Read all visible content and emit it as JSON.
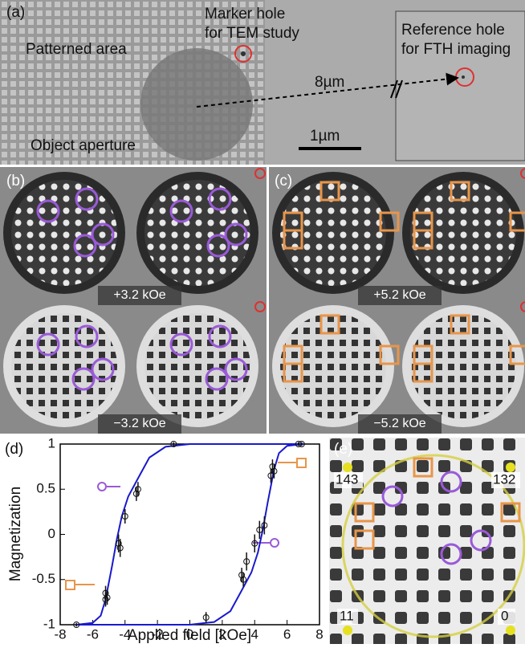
{
  "panels": {
    "a": {
      "label": "(a)",
      "marker_1": "Marker hole",
      "marker_2": "for TEM study",
      "reference_1": "Reference hole",
      "reference_2": "for FTH imaging",
      "patterned": "Patterned area",
      "distance": "8µm",
      "scale": "1µm",
      "aperture": "Object aperture"
    },
    "b": {
      "label": "(b)",
      "field_top": "+3.2 kOe",
      "field_bottom": "−3.2 kOe"
    },
    "c": {
      "label": "(c)",
      "field_top": "+5.2 kOe",
      "field_bottom": "−5.2 kOe"
    },
    "d": {
      "label": "(d)"
    },
    "e": {
      "label": "(e)",
      "corner_tl": "143",
      "corner_tr": "132",
      "corner_bl": "11",
      "corner_br": "0"
    }
  },
  "chart_data": {
    "type": "scatter",
    "xlabel": "Applied field [kOe]",
    "ylabel": "Magnetization",
    "xlim": [
      -8,
      8
    ],
    "xticks": [
      -8,
      -6,
      -4,
      -2,
      0,
      2,
      4,
      6,
      8
    ],
    "ylim": [
      -1,
      1
    ],
    "yticks": [
      -1,
      -0.5,
      0,
      0.5,
      1
    ],
    "series": [
      {
        "type": "line",
        "color": "#1a1acc",
        "x": [
          -7,
          -6,
          -5.5,
          -5.2,
          -4.8,
          -4.5,
          -4.2,
          -3.8,
          -3.2,
          -2.5,
          -1.5,
          0,
          2,
          4,
          6,
          7
        ],
        "values": [
          -1,
          -0.98,
          -0.9,
          -0.72,
          -0.35,
          -0.05,
          0.2,
          0.42,
          0.62,
          0.85,
          0.97,
          1,
          1,
          1,
          1,
          1
        ]
      },
      {
        "type": "line",
        "color": "#1a1acc",
        "x": [
          -7,
          -4,
          -2,
          0,
          1.5,
          2.5,
          3.2,
          3.8,
          4.2,
          4.5,
          4.8,
          5.2,
          5.5,
          6,
          7
        ],
        "values": [
          -1,
          -1,
          -1,
          -1,
          -0.97,
          -0.85,
          -0.62,
          -0.42,
          -0.2,
          0.05,
          0.35,
          0.72,
          0.9,
          0.98,
          1
        ]
      },
      {
        "type": "scatter",
        "color": "#111111",
        "x": [
          -7,
          -5.2,
          -5.2,
          -5.1,
          -4.3,
          -4.4,
          -4,
          -3.3,
          -3.2,
          -1,
          1,
          3.2,
          3.3,
          3.5,
          4,
          4.3,
          4.6,
          5,
          5.2,
          5.1,
          6.7,
          6.9
        ],
        "values": [
          -1,
          -0.72,
          -0.65,
          -0.7,
          -0.15,
          -0.1,
          0.2,
          0.45,
          0.5,
          1,
          -0.92,
          -0.45,
          -0.5,
          -0.3,
          -0.1,
          0.05,
          0.1,
          0.65,
          0.7,
          0.75,
          1,
          1
        ],
        "errors": [
          0.02,
          0.08,
          0.08,
          0.08,
          0.1,
          0.1,
          0.08,
          0.08,
          0.08,
          0.02,
          0.06,
          0.08,
          0.08,
          0.1,
          0.1,
          0.1,
          0.1,
          0.08,
          0.08,
          0.08,
          0.02,
          0.02
        ]
      }
    ]
  }
}
